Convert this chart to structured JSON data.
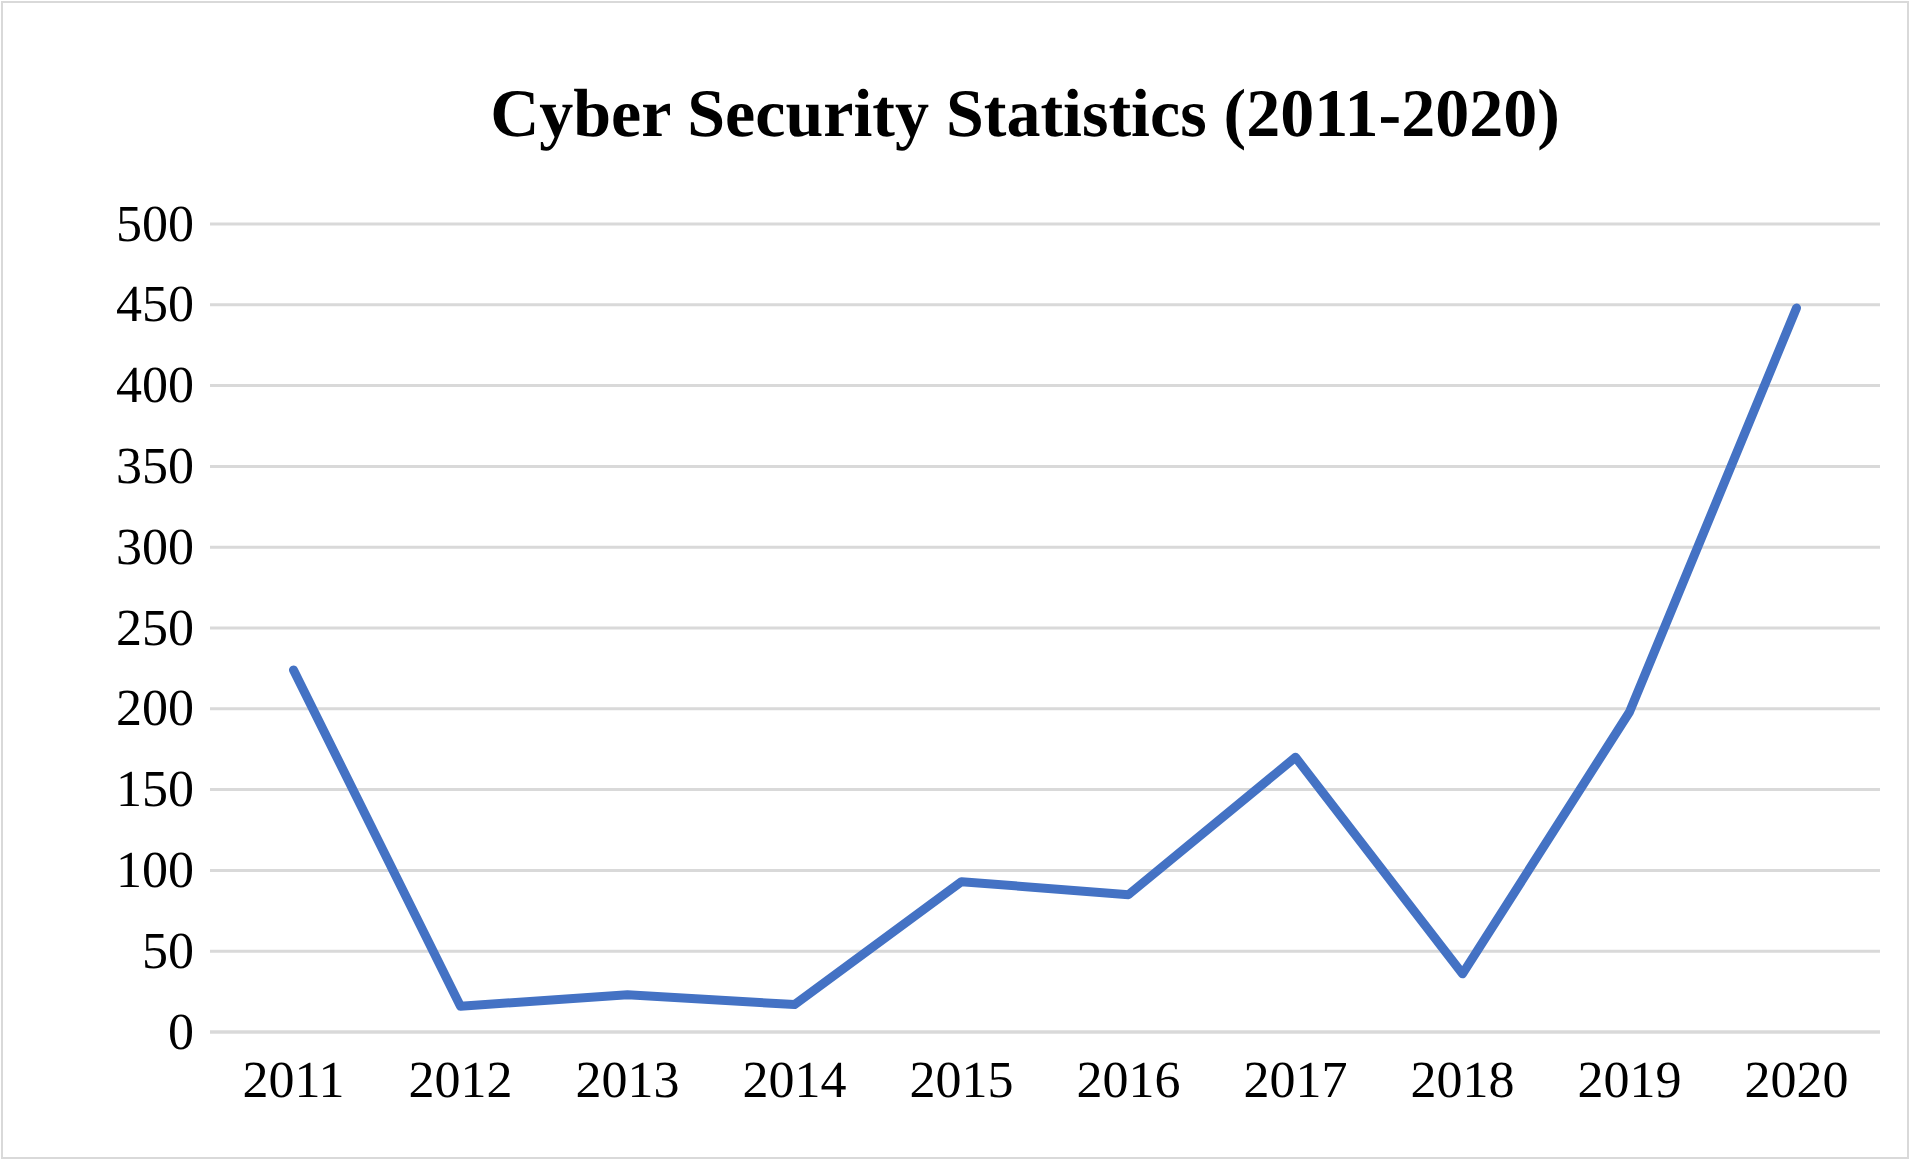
{
  "chart_data": {
    "type": "line",
    "title": "Cyber Security Statistics (2011-2020)",
    "categories": [
      "2011",
      "2012",
      "2013",
      "2014",
      "2015",
      "2016",
      "2017",
      "2018",
      "2019",
      "2020"
    ],
    "series": [
      {
        "color": "#4472c4",
        "values": [
          224,
          16,
          23,
          17,
          93,
          85,
          170,
          36,
          198,
          448
        ]
      }
    ],
    "ylim": [
      0,
      500
    ],
    "yticks": [
      0,
      50,
      100,
      150,
      200,
      250,
      300,
      350,
      400,
      450,
      500
    ],
    "grid": "y",
    "marker": "none",
    "line_style": "solid"
  }
}
